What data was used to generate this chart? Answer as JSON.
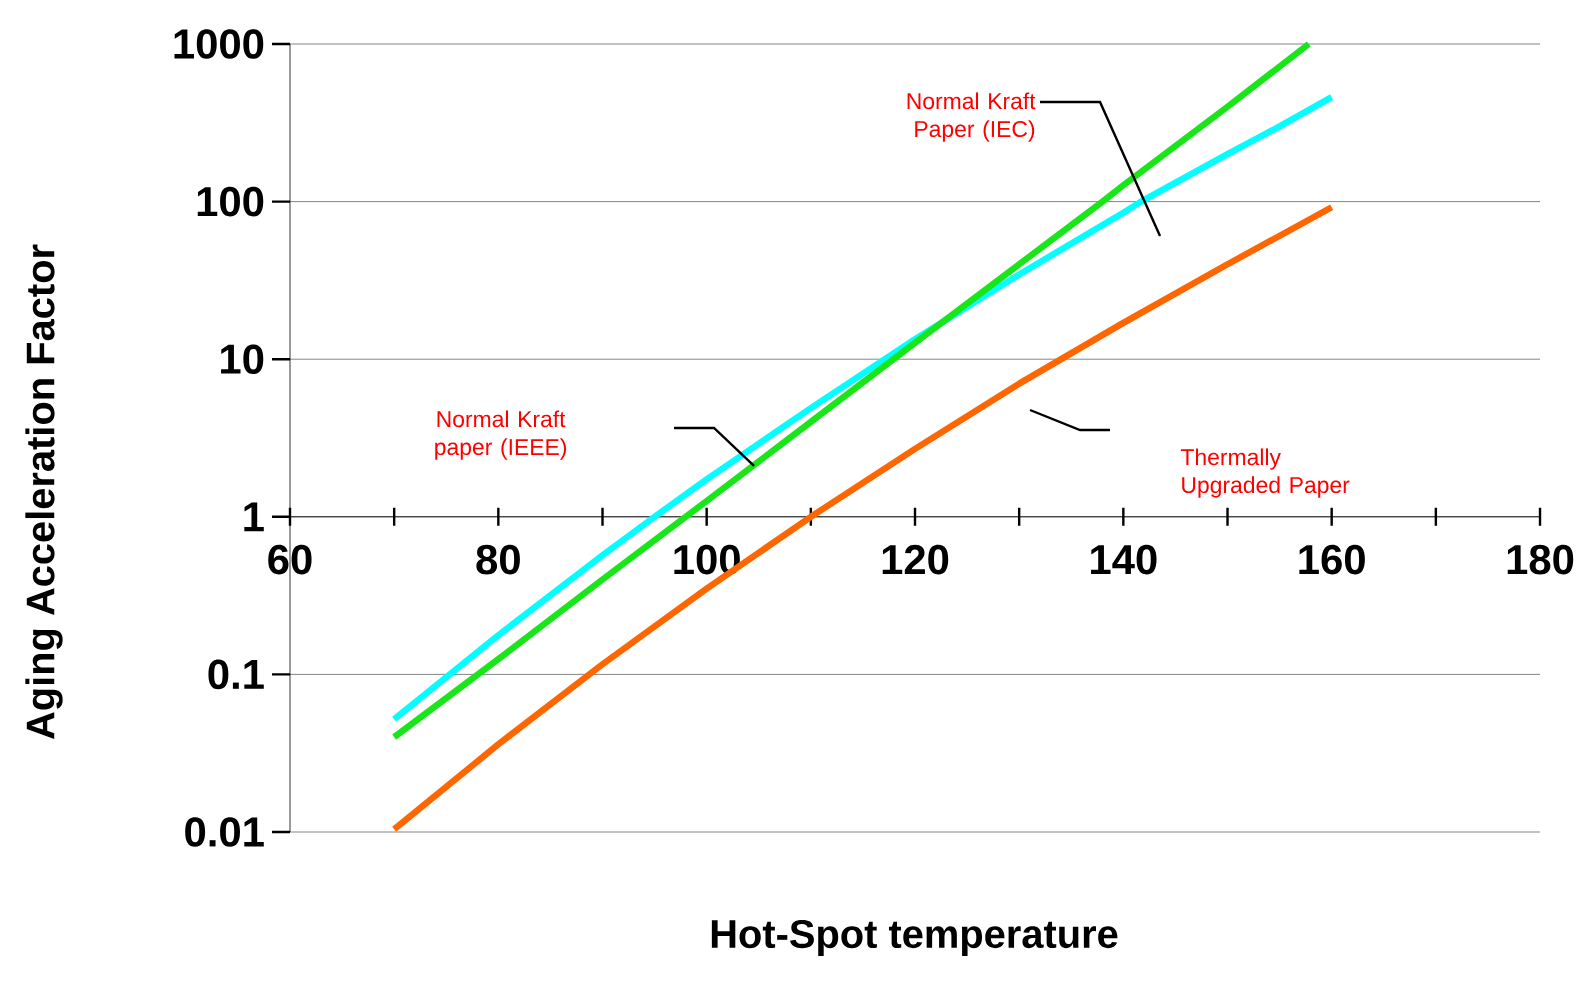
{
  "chart_data": {
    "type": "line",
    "xlabel": "Hot-Spot temperature",
    "ylabel": "Aging Acceleration Factor",
    "log": "y",
    "grid": "y",
    "xlim": [
      60,
      180
    ],
    "ylim": [
      0.01,
      1000
    ],
    "xticks": [
      60,
      80,
      100,
      120,
      140,
      160,
      180
    ],
    "yticks": [
      0.01,
      0.1,
      1,
      10,
      100,
      1000
    ],
    "series": [
      {
        "color": "#00ffff",
        "x": [
          70,
          80,
          90,
          95,
          100,
          110,
          120,
          130,
          140,
          141.7,
          150,
          155,
          160
        ],
        "values": [
          0.052,
          0.177,
          0.57,
          1,
          1.73,
          4.9,
          13.4,
          34.5,
          85,
          100,
          200,
          300,
          460
        ]
      },
      {
        "color": "#19e619",
        "x": [
          70,
          80,
          90,
          100,
          110,
          120,
          130,
          138,
          140,
          150,
          157.8
        ],
        "values": [
          0.04,
          0.125,
          0.4,
          1.26,
          4,
          12.7,
          40,
          100,
          127,
          400,
          1000
        ]
      },
      {
        "color": "#ff6600",
        "x": [
          70,
          80,
          90,
          100,
          110,
          120,
          130,
          140,
          150,
          160
        ],
        "values": [
          0.0104,
          0.036,
          0.116,
          0.35,
          1,
          2.7,
          7,
          17,
          40,
          92
        ]
      }
    ],
    "annotations": [
      "Normal Kraft Paper (IEC)",
      "Normal Kraft paper (IEEE)",
      "Thermally Upgraded Paper"
    ]
  }
}
